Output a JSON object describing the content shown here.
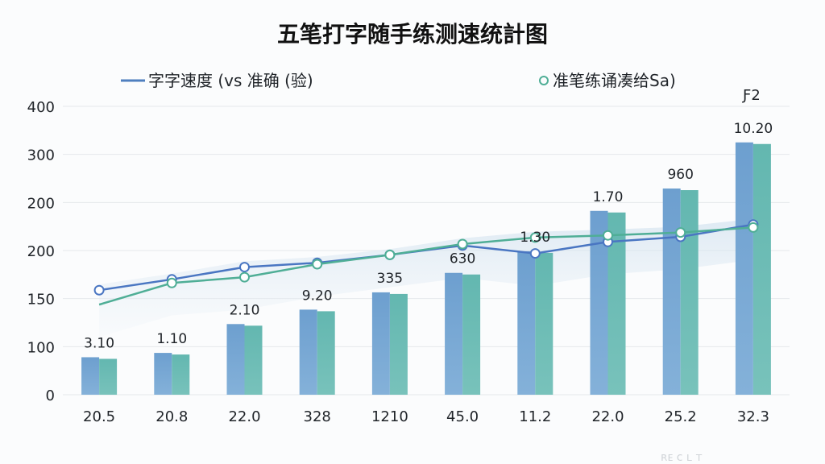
{
  "chart_data": {
    "type": "bar",
    "title": "五笔打字随手练测速统計图",
    "categories": [
      "20.5",
      "20.8",
      "22.0",
      "328",
      "1210",
      "45.0",
      "11.2",
      "22.0",
      "25.2",
      "32.3"
    ],
    "y_ticks": [
      "0",
      "100",
      "150",
      "200",
      "200",
      "300",
      "400"
    ],
    "legend": [
      {
        "label": "字字速度 (vs 准确 (验)",
        "marker": "line",
        "color": "#4f7fbf"
      },
      {
        "label": "准笔练诵凑给Sa)",
        "marker": "circle",
        "color": "#4fae96"
      }
    ],
    "series": [
      {
        "kind": "bar",
        "values": [
          52,
          58,
          98,
          118,
          142,
          169,
          199,
          255,
          286,
          350
        ],
        "data_labels": [
          "3.10",
          "1.10",
          "2.10",
          "9.20",
          "335",
          "630",
          "1.30",
          "1.70",
          "960",
          "10.20"
        ],
        "color_left": "#6d9fcf",
        "color_right": "#63b7b0"
      },
      {
        "kind": "line",
        "values": [
          145,
          160,
          177,
          183,
          194,
          207,
          196,
          212,
          219,
          236
        ],
        "color": "#4a76c2"
      },
      {
        "kind": "line",
        "values": [
          125,
          155,
          163,
          181,
          194,
          209,
          218,
          221,
          225,
          232
        ],
        "color": "#4fae96"
      }
    ],
    "annotations": [
      {
        "text": "Ƒ2",
        "near_index": 9
      }
    ],
    "grid": true,
    "legend_position": "top"
  },
  "footer": {
    "faint_text": "ʀᴇ ᴄ ʟ ᴛ"
  }
}
